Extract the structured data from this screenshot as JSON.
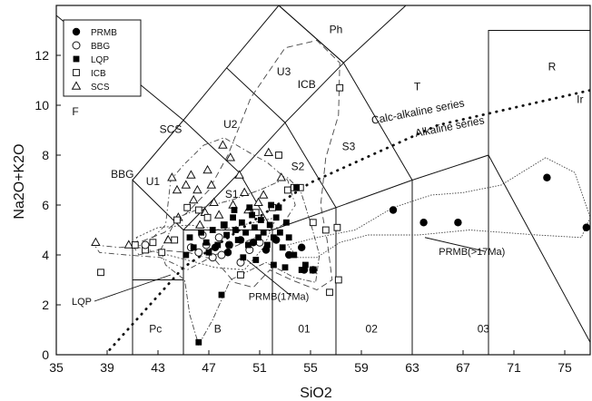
{
  "chart_data": {
    "type": "scatter",
    "xlabel": "SiO2",
    "ylabel": "Na2O+K2O",
    "xlim": [
      35,
      77
    ],
    "ylim": [
      0,
      14
    ],
    "x_ticks": [
      35,
      39,
      43,
      47,
      51,
      55,
      59,
      63,
      67,
      71,
      75
    ],
    "y_ticks": [
      0,
      2,
      4,
      6,
      8,
      10,
      12
    ],
    "grid": false,
    "legend_position": "top-left",
    "legend": [
      {
        "label": "PRMB",
        "marker": "filled-circle"
      },
      {
        "label": "BBG",
        "marker": "open-circle"
      },
      {
        "label": "LQP",
        "marker": "filled-square"
      },
      {
        "label": "ICB",
        "marker": "open-square"
      },
      {
        "label": "SCS",
        "marker": "open-triangle"
      }
    ],
    "field_boundaries": [
      [
        [
          41,
          0
        ],
        [
          41,
          3
        ],
        [
          45,
          3
        ]
      ],
      [
        [
          45,
          0
        ],
        [
          45,
          5
        ],
        [
          41,
          7
        ],
        [
          41,
          3
        ]
      ],
      [
        [
          45,
          5
        ],
        [
          52,
          5
        ],
        [
          52,
          0
        ]
      ],
      [
        [
          52,
          0
        ],
        [
          52,
          5
        ],
        [
          57,
          5.9
        ],
        [
          57,
          0
        ]
      ],
      [
        [
          57,
          0
        ],
        [
          57,
          5.9
        ],
        [
          63,
          7
        ],
        [
          63,
          0
        ]
      ],
      [
        [
          63,
          0
        ],
        [
          63,
          7
        ],
        [
          69,
          8
        ],
        [
          69,
          0
        ]
      ],
      [
        [
          41,
          7
        ],
        [
          45,
          9.4
        ],
        [
          49.4,
          7.3
        ],
        [
          45,
          5
        ]
      ],
      [
        [
          45,
          9.4
        ],
        [
          48.4,
          11.5
        ],
        [
          53,
          9.3
        ],
        [
          49.4,
          7.3
        ]
      ],
      [
        [
          48.4,
          11.5
        ],
        [
          52.5,
          14
        ],
        [
          57.6,
          11.7
        ],
        [
          53,
          9.3
        ]
      ],
      [
        [
          57.6,
          11.7
        ],
        [
          63,
          7
        ]
      ],
      [
        [
          52,
          5
        ],
        [
          49.4,
          7.3
        ]
      ],
      [
        [
          57,
          5.9
        ],
        [
          53,
          9.3
        ]
      ],
      [
        [
          69,
          8
        ],
        [
          69,
          13
        ],
        [
          77,
          13
        ]
      ],
      [
        [
          35,
          13.6
        ],
        [
          45,
          9.4
        ]
      ],
      [
        [
          52.5,
          14
        ],
        [
          57.6,
          11.7
        ]
      ],
      [
        [
          57.6,
          11.7
        ],
        [
          62.5,
          14
        ]
      ],
      [
        [
          69,
          8
        ],
        [
          77,
          0.5
        ]
      ]
    ],
    "series_boundary_line": [
      [
        39.2,
        0.2
      ],
      [
        45,
        3.5
      ],
      [
        55,
        6.9
      ],
      [
        65,
        9.2
      ],
      [
        77,
        10.6
      ]
    ],
    "field_labels": [
      {
        "text": "F",
        "x": 36.5,
        "y": 9.6
      },
      {
        "text": "BBG",
        "x": 40.2,
        "y": 7.1
      },
      {
        "text": "SCS",
        "x": 44,
        "y": 8.9
      },
      {
        "text": "U1",
        "x": 42.6,
        "y": 6.8
      },
      {
        "text": "U2",
        "x": 48.7,
        "y": 9.1
      },
      {
        "text": "U3",
        "x": 52.9,
        "y": 11.2
      },
      {
        "text": "Ph",
        "x": 57,
        "y": 12.9
      },
      {
        "text": "ICB",
        "x": 54.7,
        "y": 10.7
      },
      {
        "text": "S1",
        "x": 48.8,
        "y": 6.3
      },
      {
        "text": "S2",
        "x": 54,
        "y": 7.4
      },
      {
        "text": "S3",
        "x": 58,
        "y": 8.2
      },
      {
        "text": "T",
        "x": 63.4,
        "y": 10.6
      },
      {
        "text": "R",
        "x": 74,
        "y": 11.4
      },
      {
        "text": "Ir",
        "x": 76.2,
        "y": 10.1
      },
      {
        "text": "Pc",
        "x": 42.8,
        "y": 0.9
      },
      {
        "text": "B",
        "x": 47.7,
        "y": 0.9
      },
      {
        "text": "01",
        "x": 54.5,
        "y": 0.9
      },
      {
        "text": "02",
        "x": 59.8,
        "y": 0.9
      },
      {
        "text": "03",
        "x": 68.6,
        "y": 0.9
      }
    ],
    "series_labels": [
      {
        "text": "Calc-alkaline series",
        "x": 63.5,
        "y": 9.6
      },
      {
        "text": "Alkaline series",
        "x": 66,
        "y": 9.0
      }
    ],
    "annotations": [
      {
        "text": "LQP",
        "x": 37,
        "y": 2.0,
        "arrow_to": [
          44,
          3.2
        ]
      },
      {
        "text": "PRMB(17Ma)",
        "x": 52.5,
        "y": 2.2,
        "arrow_to": [
          50,
          3.8
        ]
      },
      {
        "text": "PRMB(>17Ma)",
        "x": 67.7,
        "y": 4.0,
        "arrow_to": [
          64,
          4.7
        ]
      }
    ],
    "series": [
      {
        "name": "PRMB",
        "marker": "filled-circle",
        "points": [
          [
            47.5,
            4.3
          ],
          [
            48.5,
            4.1
          ],
          [
            49.5,
            4.6
          ],
          [
            50.5,
            4.5
          ],
          [
            51.5,
            4.2
          ],
          [
            52.3,
            4.6
          ],
          [
            53.3,
            4.0
          ],
          [
            54.3,
            4.3
          ],
          [
            54.5,
            3.4
          ],
          [
            55.2,
            3.4
          ],
          [
            61.5,
            5.8
          ],
          [
            63.9,
            5.3
          ],
          [
            66.6,
            5.3
          ],
          [
            73.6,
            7.1
          ],
          [
            76.7,
            5.1
          ]
        ]
      },
      {
        "name": "BBG",
        "marker": "open-circle",
        "points": [
          [
            42,
            4.4
          ],
          [
            45.6,
            4.3
          ],
          [
            46.2,
            4.1
          ],
          [
            46.8,
            4.4
          ],
          [
            47.3,
            3.9
          ],
          [
            48,
            4.0
          ],
          [
            48.6,
            4.4
          ],
          [
            49.5,
            3.7
          ],
          [
            50.2,
            4.2
          ],
          [
            51,
            4.5
          ],
          [
            46.5,
            4.8
          ],
          [
            47.8,
            4.7
          ]
        ]
      },
      {
        "name": "LQP",
        "marker": "filled-square",
        "points": [
          [
            46.2,
            0.5
          ],
          [
            48,
            2.4
          ],
          [
            45.5,
            4.7
          ],
          [
            45.8,
            4.3
          ],
          [
            46.4,
            4.9
          ],
          [
            46.8,
            4.5
          ],
          [
            47.3,
            5.0
          ],
          [
            47.7,
            4.4
          ],
          [
            48.2,
            5.2
          ],
          [
            48.4,
            4.8
          ],
          [
            48.6,
            4.4
          ],
          [
            48.9,
            5.5
          ],
          [
            49.1,
            5.0
          ],
          [
            49.3,
            4.6
          ],
          [
            49.6,
            5.3
          ],
          [
            49.9,
            4.9
          ],
          [
            50.1,
            4.4
          ],
          [
            50.4,
            5.6
          ],
          [
            50.6,
            5.1
          ],
          [
            50.9,
            4.7
          ],
          [
            51.1,
            5.4
          ],
          [
            51.3,
            4.9
          ],
          [
            51.6,
            4.4
          ],
          [
            51.8,
            5.2
          ],
          [
            52.1,
            4.7
          ],
          [
            52.3,
            5.5
          ],
          [
            52.6,
            4.9
          ],
          [
            52.8,
            4.3
          ],
          [
            53.1,
            5.3
          ],
          [
            53.3,
            4.7
          ],
          [
            52.5,
            5.9
          ],
          [
            51.9,
            6.0
          ],
          [
            53.9,
            6.7
          ],
          [
            49.7,
            3.9
          ],
          [
            50.7,
            3.8
          ],
          [
            52.1,
            3.6
          ],
          [
            53,
            3.5
          ],
          [
            54.6,
            3.6
          ],
          [
            54.3,
            3.4
          ],
          [
            49,
            5.8
          ],
          [
            50.2,
            5.9
          ],
          [
            45.2,
            4.0
          ],
          [
            47,
            4.1
          ],
          [
            53.7,
            4.0
          ]
        ]
      },
      {
        "name": "ICB",
        "marker": "open-square",
        "points": [
          [
            38.5,
            3.3
          ],
          [
            41.2,
            4.4
          ],
          [
            42,
            4.2
          ],
          [
            42.6,
            4.5
          ],
          [
            43.3,
            4.1
          ],
          [
            44.3,
            4.6
          ],
          [
            44.5,
            5.4
          ],
          [
            45.3,
            5.9
          ],
          [
            46.2,
            5.8
          ],
          [
            46.9,
            5.5
          ],
          [
            48.2,
            5.2
          ],
          [
            50.7,
            5.7
          ],
          [
            52,
            5.9
          ],
          [
            53.2,
            6.6
          ],
          [
            53.7,
            6.7
          ],
          [
            54.2,
            6.7
          ],
          [
            55.2,
            5.3
          ],
          [
            56.2,
            5.0
          ],
          [
            57.1,
            5.1
          ],
          [
            52.5,
            8.0
          ],
          [
            57.3,
            10.7
          ],
          [
            49.5,
            3.2
          ],
          [
            55.2,
            3.4
          ],
          [
            57.2,
            3.0
          ],
          [
            56.5,
            2.5
          ]
        ]
      },
      {
        "name": "SCS",
        "marker": "open-triangle",
        "points": [
          [
            38.1,
            4.5
          ],
          [
            40.7,
            4.4
          ],
          [
            43.8,
            4.6
          ],
          [
            44.1,
            7.1
          ],
          [
            44.5,
            6.6
          ],
          [
            44.6,
            5.5
          ],
          [
            45.2,
            6.8
          ],
          [
            45.6,
            7.2
          ],
          [
            45.8,
            6.2
          ],
          [
            46.1,
            6.6
          ],
          [
            46.7,
            5.7
          ],
          [
            47.4,
            6.1
          ],
          [
            48.1,
            8.4
          ],
          [
            48.7,
            7.9
          ],
          [
            49.4,
            7.2
          ],
          [
            49.8,
            6.5
          ],
          [
            50.1,
            5.8
          ],
          [
            50.9,
            6.1
          ],
          [
            51.3,
            6.4
          ],
          [
            52.7,
            7.1
          ],
          [
            47.8,
            5.6
          ],
          [
            46.3,
            5.2
          ],
          [
            47.2,
            6.8
          ],
          [
            46.9,
            7.4
          ],
          [
            48.9,
            6.0
          ],
          [
            51.7,
            8.1
          ]
        ]
      }
    ]
  }
}
